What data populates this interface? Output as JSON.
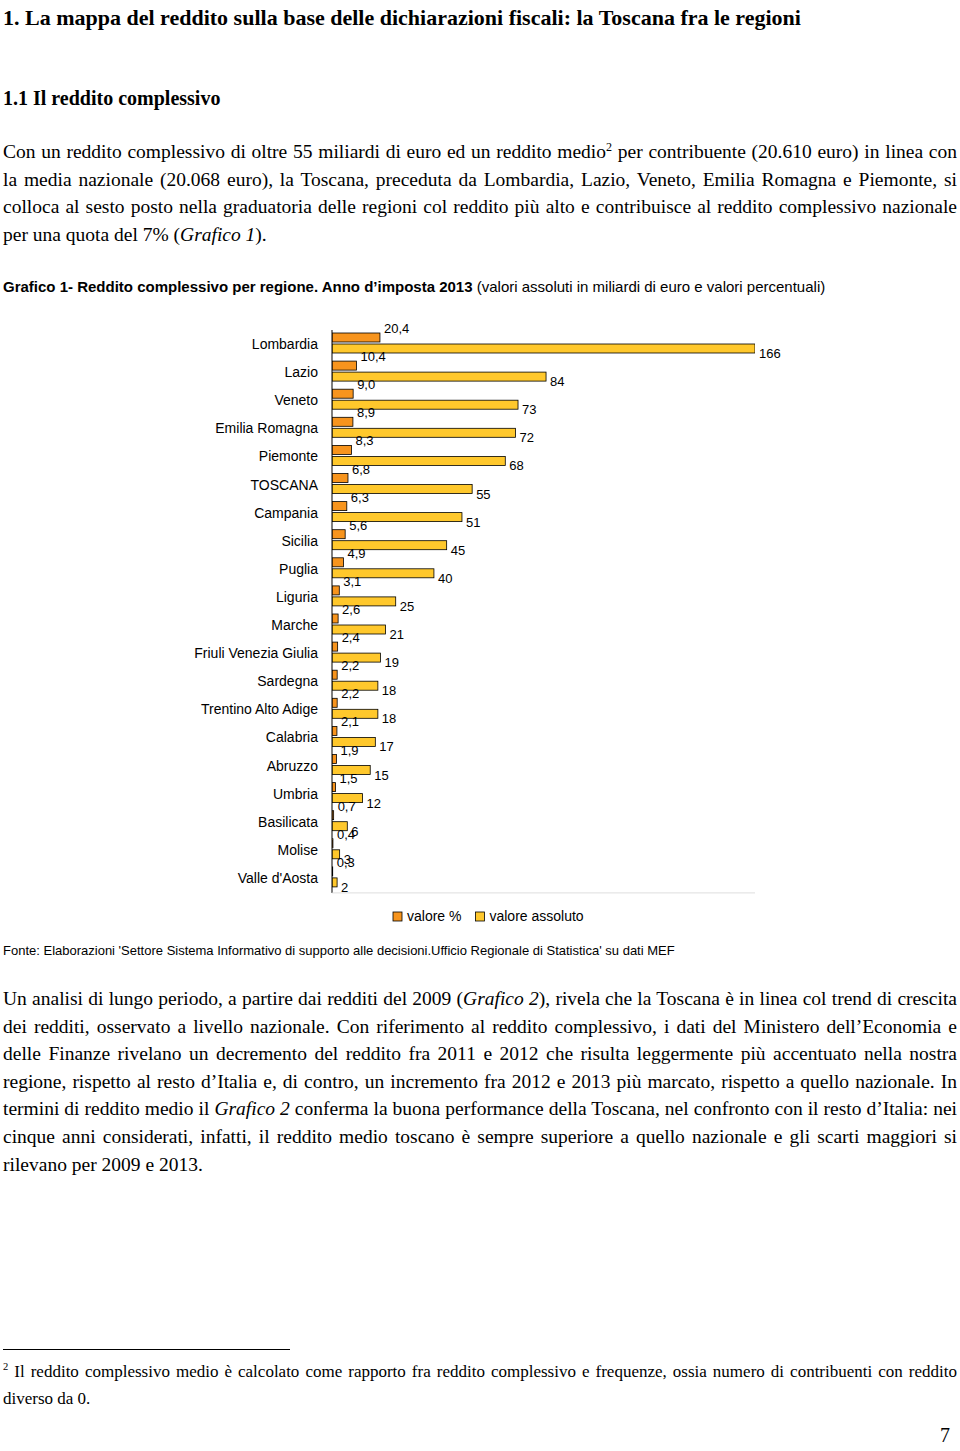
{
  "heading": "1. La mappa del reddito sulla base delle dichiarazioni fiscali: la Toscana fra le regioni",
  "subheading": "1.1 Il reddito complessivo",
  "paragraphs": [
    {
      "runs": [
        {
          "text": "Con un reddito complessivo di oltre 55 miliardi di euro ed un reddito medio"
        },
        {
          "text": "2",
          "superscript": true
        },
        {
          "text": " per contribuente (20.610 euro) in linea con la media nazionale (20.068 euro), la Toscana, preceduta da Lombardia, Lazio, Veneto, Emilia Romagna e Piemonte, si colloca al sesto posto nella graduatoria delle regioni col reddito più alto e contribuisce al reddito complessivo nazionale per una quota del 7% ("
        },
        {
          "text": "Grafico 1",
          "italic": true
        },
        {
          "text": ")."
        }
      ]
    },
    {
      "runs": [
        {
          "text": "Un analisi di lungo periodo, a partire dai redditi del 2009 ("
        },
        {
          "text": "Grafico 2",
          "italic": true
        },
        {
          "text": "), rivela che la Toscana è in linea col trend di crescita dei redditi, osservato a livello nazionale. Con riferimento al reddito complessivo, i dati del Ministero dell’Economia e delle Finanze rivelano un decremento del reddito fra 2011 e 2012 che risulta leggermente più accentuato nella nostra regione, rispetto al resto d’Italia e, di contro, un incremento fra 2012 e 2013 più marcato, rispetto a quello nazionale. In termini di reddito medio il "
        },
        {
          "text": "Grafico 2",
          "italic": true
        },
        {
          "text": " conferma la buona performance della Toscana, nel confronto con il resto d’Italia: nei cinque anni considerati, infatti, il reddito medio toscano è sempre superiore a quello nazionale e gli scarti maggiori si rilevano per 2009 e 2013."
        }
      ]
    }
  ],
  "chart_caption": {
    "runs": [
      {
        "text": "Grafico 1- Reddito complessivo per regione. Anno d’imposta 2013",
        "bold": true
      },
      {
        "text": " (valori assoluti in miliardi di euro e valori percentuali)"
      }
    ]
  },
  "chart_data": {
    "type": "bar",
    "orientation": "horizontal",
    "categories": [
      "Lombardia",
      "Lazio",
      "Veneto",
      "Emilia Romagna",
      "Piemonte",
      "TOSCANA",
      "Campania",
      "Sicilia",
      "Puglia",
      "Liguria",
      "Marche",
      "Friuli Venezia Giulia",
      "Sardegna",
      "Trentino Alto Adige",
      "Calabria",
      "Abruzzo",
      "Umbria",
      "Basilicata",
      "Molise",
      "Valle d'Aosta"
    ],
    "series": [
      {
        "name": "valore %",
        "color": "#F7941D",
        "axis": "y2",
        "values": [
          20.4,
          10.4,
          9.0,
          8.9,
          8.3,
          6.8,
          6.3,
          5.6,
          4.9,
          3.1,
          2.6,
          2.4,
          2.2,
          2.2,
          2.1,
          1.9,
          1.5,
          0.7,
          0.4,
          0.3
        ],
        "value_labels": [
          "20,4",
          "10,4",
          "9,0",
          "8,9",
          "8,3",
          "6,8",
          "6,3",
          "5,6",
          "4,9",
          "3,1",
          "2,6",
          "2,4",
          "2,2",
          "2,2",
          "2,1",
          "1,9",
          "1,5",
          "0,7",
          "0,4",
          "0,3"
        ]
      },
      {
        "name": "valore assoluto",
        "color": "#FFC82C",
        "values": [
          166,
          84,
          73,
          72,
          68,
          55,
          51,
          45,
          40,
          25,
          21,
          19,
          18,
          18,
          17,
          15,
          12,
          6,
          3,
          2
        ]
      }
    ],
    "ylim": [
      0,
      166
    ],
    "y2lim": [
      0,
      180
    ],
    "tick_labels": false,
    "data_labels": true,
    "legend": "bottom"
  },
  "source": "Fonte: Elaborazioni 'Settore Sistema Informativo di supporto alle decisioni.Ufficio Regionale di Statistica' su dati MEF",
  "footnote": {
    "runs": [
      {
        "text": "2",
        "superscript": true
      },
      {
        "text": " Il reddito complessivo medio è calcolato come rapporto fra reddito complessivo e frequenze, ossia numero di contribuenti con reddito diverso da 0."
      }
    ]
  },
  "page_number": "7"
}
